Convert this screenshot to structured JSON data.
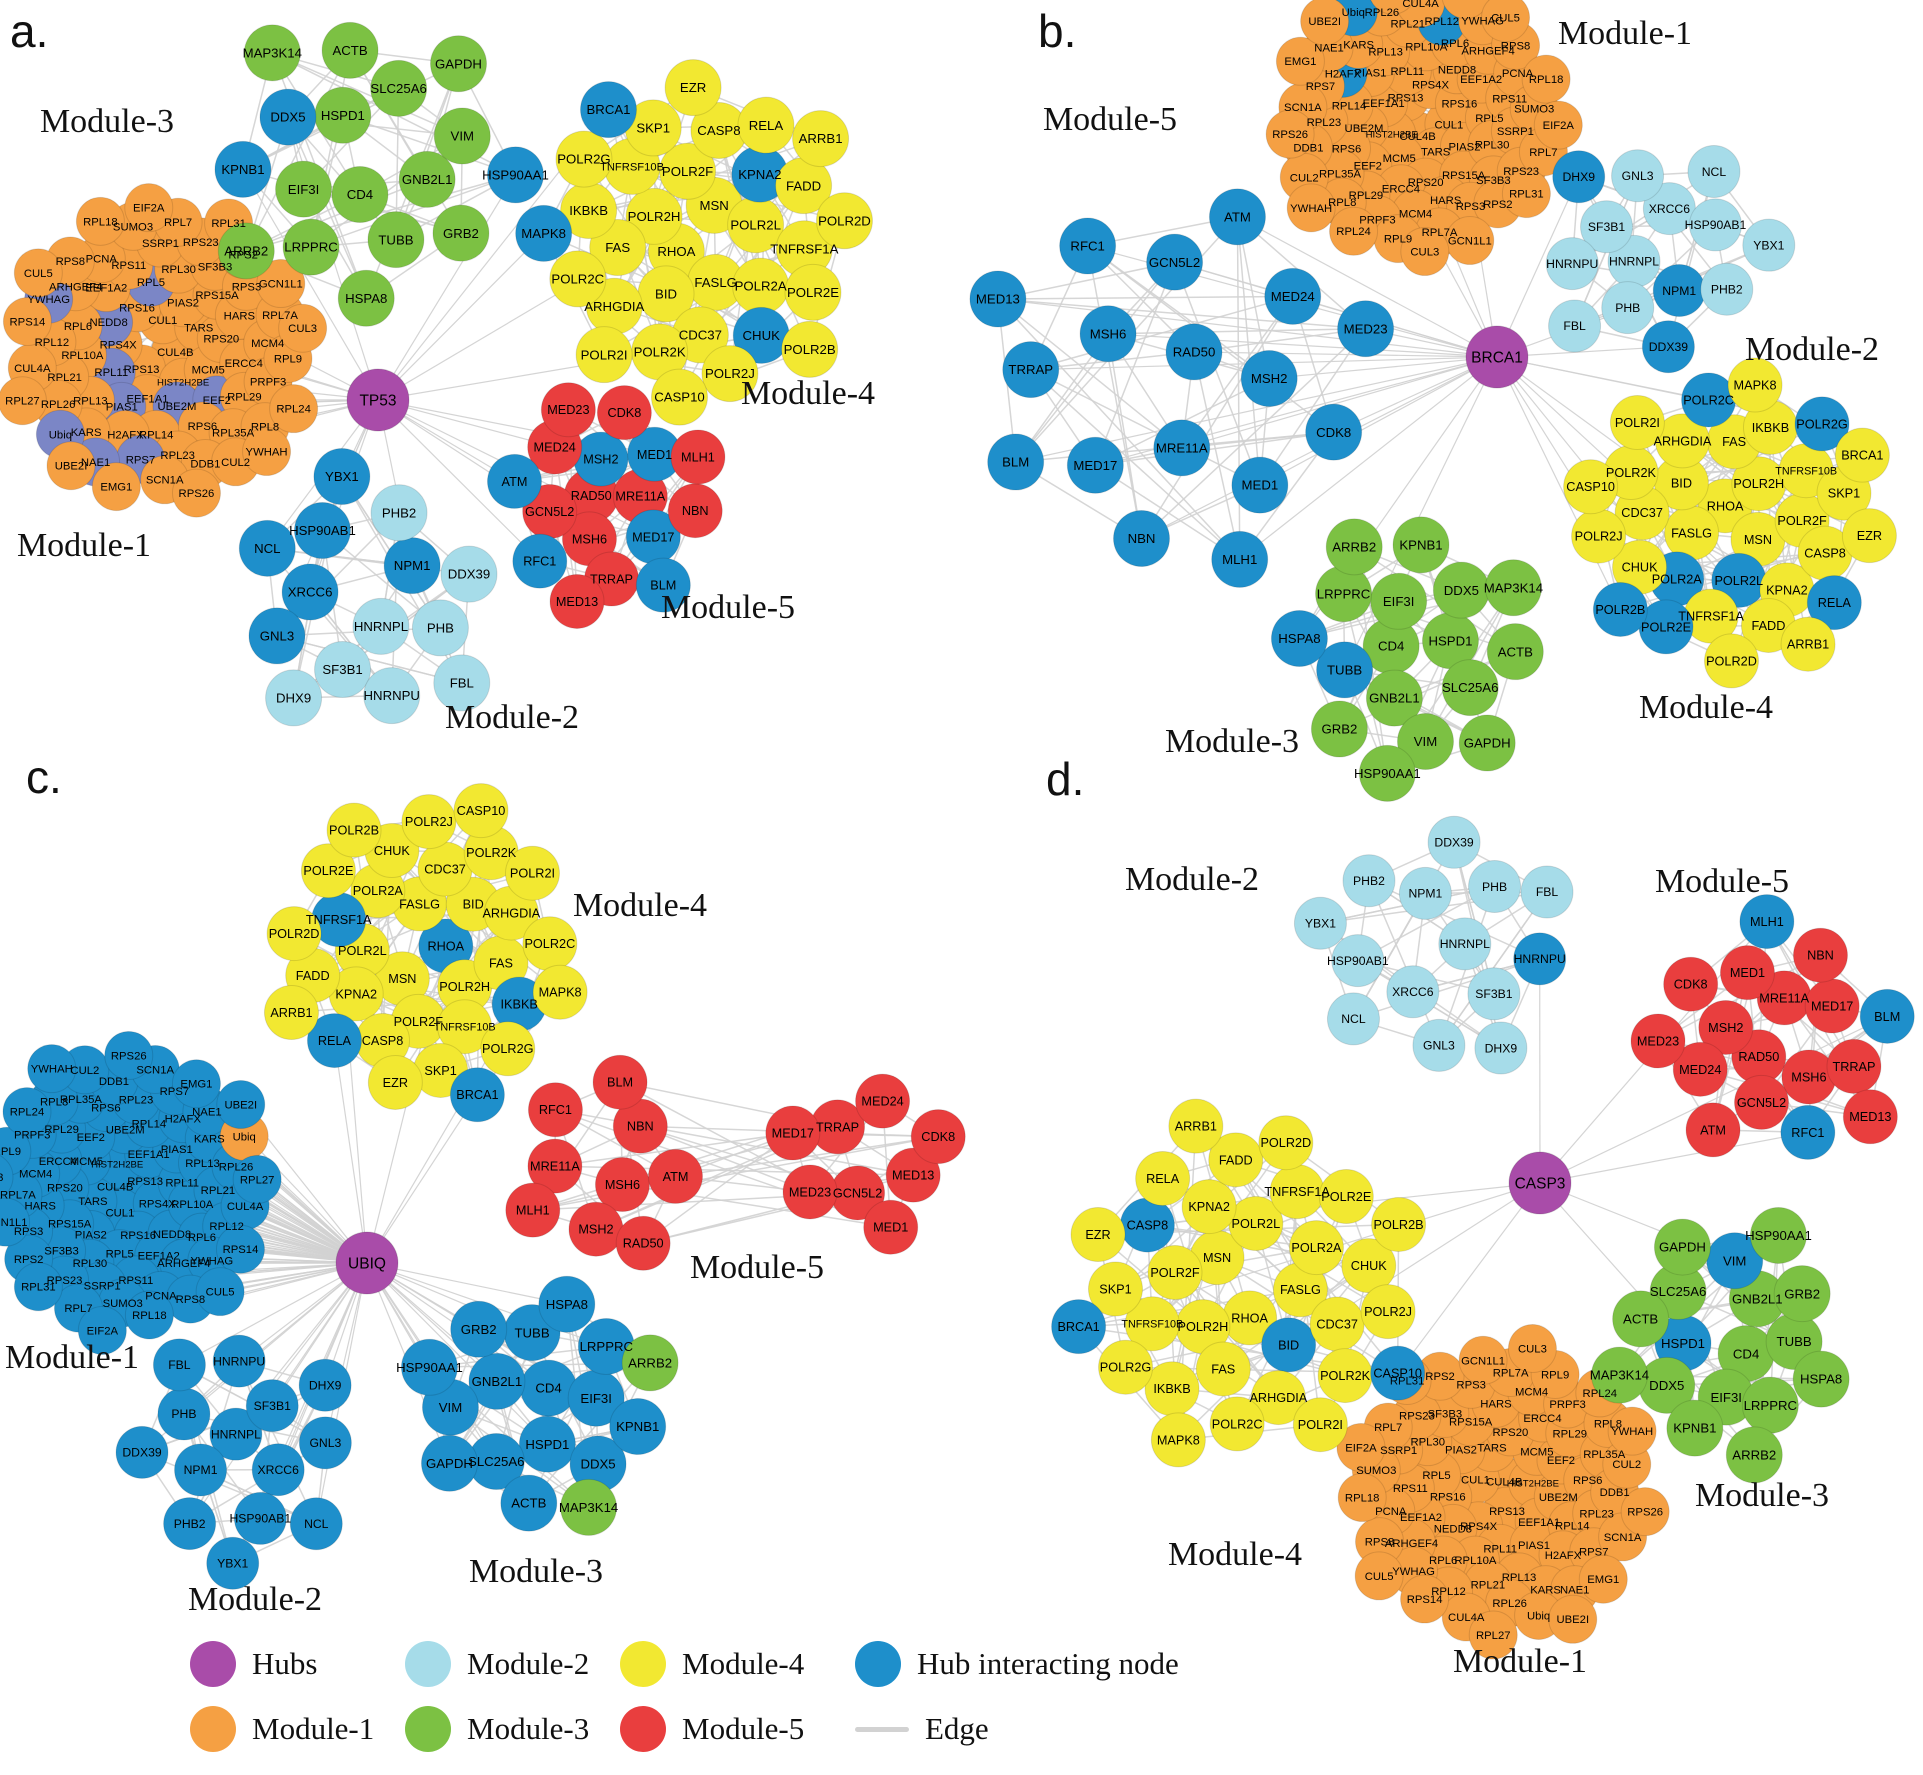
{
  "colors": {
    "hub": "#A94CA9",
    "module1": "#F5A043",
    "module2": "#A6DCE9",
    "module3": "#7CC143",
    "module4": "#F2E831",
    "module5": "#E93E3E",
    "hub_interacting": "#1E8FCB",
    "module1_highlight": "#7B86C6",
    "edge": "#D2D2D2",
    "label": "#000000"
  },
  "gene_sets": {
    "module1": [
      "CUL4B",
      "RPS13",
      "CUL1",
      "HIST2H2BE",
      "RPS4X",
      "TARS",
      "EEF1A1",
      "RPS16",
      "MCM5",
      "RPL11",
      "PIAS2",
      "UBE2M",
      "NEDD8",
      "RPS20",
      "PIAS1",
      "RPL5",
      "EEF2",
      "RPL10A",
      "RPS15A",
      "RPL14",
      "EEF1A2",
      "ERCC4",
      "RPL13",
      "RPL30",
      "RPS6",
      "RPL6",
      "HARS",
      "H2AFX",
      "RPS11",
      "RPL29",
      "RPL21",
      "SF3B3",
      "RPL23",
      "ARHGEF4",
      "MCM4",
      "KARS",
      "SSRP1",
      "RPL35A",
      "RPL12",
      "RPS3",
      "RPS7",
      "PCNA",
      "PRPF3",
      "RPL26",
      "RPS23",
      "DDB1",
      "YWHAG",
      "RPL7A",
      "NAE1",
      "SUMO3",
      "RPL8",
      "CUL4A",
      "RPS2",
      "SCN1A",
      "RPS8",
      "RPL9",
      "Ubiq",
      "RPL7",
      "CUL2",
      "RPS14",
      "GCN1L1",
      "EMG1",
      "RPL18",
      "RPL24",
      "RPL27",
      "RPL31",
      "RPS26",
      "CUL5",
      "CUL3",
      "UBE2I",
      "EIF2A",
      "YWHAH"
    ],
    "module2": [
      "HNRNPL",
      "XRCC6",
      "NPM1",
      "SF3B1",
      "HSP90AB1",
      "PHB",
      "GNL3",
      "PHB2",
      "HNRNPU",
      "NCL",
      "DDX39",
      "DHX9",
      "YBX1",
      "FBL"
    ],
    "module3": [
      "CD4",
      "HSPD1",
      "GNB2L1",
      "EIF3I",
      "SLC25A6",
      "TUBB",
      "DDX5",
      "VIM",
      "LRPPRC",
      "ACTB",
      "GRB2",
      "KPNB1",
      "GAPDH",
      "HSPA8",
      "MAP3K14",
      "HSP90AA1",
      "ARRB2"
    ],
    "module4": [
      "RHOA",
      "MSN",
      "FASLG",
      "POLR2H",
      "POLR2L",
      "BID",
      "POLR2F",
      "POLR2A",
      "FAS",
      "KPNA2",
      "CDC37",
      "TNFRSF10B",
      "TNFRSF1A",
      "ARHGDIA",
      "CASP8",
      "CHUK",
      "IKBKB",
      "FADD",
      "POLR2K",
      "SKP1",
      "POLR2E",
      "POLR2C",
      "RELA",
      "POLR2J",
      "POLR2G",
      "POLR2D",
      "POLR2I",
      "EZR",
      "POLR2B",
      "MAPK8",
      "ARRB1",
      "CASP10",
      "BRCA1"
    ],
    "module5": [
      "RAD50",
      "MRE11A",
      "MSH6",
      "MSH2",
      "MED17",
      "GCN5L2",
      "MED1",
      "TRRAP",
      "MED24",
      "NBN",
      "RFC1",
      "CDK8",
      "BLM",
      "ATM",
      "MLH1",
      "MED13",
      "MED23"
    ],
    "module5_c": [
      "MSH6",
      "MRE11A",
      "NBN",
      "MSH2",
      "RFC1",
      "ATM",
      "MLH1",
      "BLM",
      "RAD50",
      "GCN5L2",
      "TRRAP",
      "MED13",
      "MED23",
      "MED24",
      "MED1",
      "MED17",
      "CDK8"
    ]
  },
  "panels": [
    {
      "id": "a",
      "letter": "a.",
      "hub": "TP53",
      "modules": [
        {
          "key": "m1",
          "name": "Module-1",
          "color": "module1",
          "nodes_ref": "module1",
          "highlight_color": "module1_highlight",
          "highlighted": [
            "RPL11",
            "RPL5",
            "EEF2",
            "UBE2M",
            "NEDD8",
            "PIAS1",
            "RPS7",
            "NAE1",
            "Ubiq",
            "YWHAG"
          ]
        },
        {
          "key": "m2",
          "name": "Module-2",
          "color": "module2",
          "nodes_ref": "module2",
          "highlighted": [
            "XRCC6",
            "NPM1",
            "HSP90AB1",
            "GNL3",
            "NCL",
            "YBX1"
          ]
        },
        {
          "key": "m3",
          "name": "Module-3",
          "color": "module3",
          "nodes_ref": "module3",
          "highlighted": [
            "DDX5",
            "KPNB1",
            "HSP90AA1"
          ]
        },
        {
          "key": "m4",
          "name": "Module-4",
          "color": "module4",
          "nodes_ref": "module4",
          "highlighted": [
            "KPNA2",
            "CHUK",
            "MAPK8",
            "BRCA1"
          ]
        },
        {
          "key": "m5",
          "name": "Module-5",
          "color": "module5",
          "nodes_ref": "module5",
          "highlighted": [
            "MSH2",
            "MED17",
            "MED1",
            "RFC1",
            "BLM",
            "ATM"
          ]
        }
      ]
    },
    {
      "id": "b",
      "letter": "b.",
      "hub": "BRCA1",
      "modules": [
        {
          "key": "m1",
          "name": "Module-1",
          "color": "module1",
          "nodes_ref": "module1",
          "highlighted": [
            "H2AFX",
            "Ubiq",
            "RPL12"
          ]
        },
        {
          "key": "m2",
          "name": "Module-2",
          "color": "module2",
          "nodes_ref": "module2",
          "highlighted": [
            "NPM1",
            "DHX9",
            "DDX39"
          ]
        },
        {
          "key": "m3",
          "name": "Module-3",
          "color": "module3",
          "nodes_ref": "module3",
          "highlighted": [
            "TUBB",
            "HSPA8"
          ]
        },
        {
          "key": "m4",
          "name": "Module-4",
          "color": "module4",
          "nodes_ref": "module4",
          "highlighted": [
            "POLR2A",
            "POLR2B",
            "POLR2C",
            "POLR2E",
            "POLR2G",
            "POLR2L",
            "RELA"
          ]
        },
        {
          "key": "m5",
          "name": "Module-5",
          "color": "module5",
          "nodes_ref": "module5",
          "highlight_all": true
        }
      ]
    },
    {
      "id": "c",
      "letter": "c.",
      "hub": "UBIQ",
      "modules": [
        {
          "key": "m1",
          "name": "Module-1",
          "color": "module1",
          "nodes_ref": "module1",
          "highlight_all_except": [
            "Ubiq"
          ]
        },
        {
          "key": "m2",
          "name": "Module-2",
          "color": "module2",
          "nodes_ref": "module2",
          "highlight_all": true
        },
        {
          "key": "m3",
          "name": "Module-3",
          "color": "module3",
          "nodes_ref": "module3",
          "highlight_all_except": [
            "ARRB2",
            "MAP3K14"
          ]
        },
        {
          "key": "m4",
          "name": "Module-4",
          "color": "module4",
          "nodes_ref": "module4",
          "highlighted": [
            "BRCA1",
            "IKBKB",
            "TNFRSF1A",
            "RELA",
            "RHOA"
          ]
        },
        {
          "key": "m5",
          "name": "Module-5",
          "color": "module5",
          "nodes_ref": "module5_c",
          "highlighted": []
        }
      ]
    },
    {
      "id": "d",
      "letter": "d.",
      "hub": "CASP3",
      "modules": [
        {
          "key": "m1",
          "name": "Module-1",
          "color": "module1",
          "nodes_ref": "module1",
          "highlighted": []
        },
        {
          "key": "m2",
          "name": "Module-2",
          "color": "module2",
          "nodes_ref": "module2",
          "highlighted": [
            "HNRNPU"
          ]
        },
        {
          "key": "m3",
          "name": "Module-3",
          "color": "module3",
          "nodes_ref": "module3",
          "highlighted": [
            "VIM",
            "HSPD1"
          ]
        },
        {
          "key": "m4",
          "name": "Module-4",
          "color": "module4",
          "nodes_ref": "module4",
          "highlighted": [
            "BRCA1",
            "CASP10",
            "CASP8",
            "BID"
          ]
        },
        {
          "key": "m5",
          "name": "Module-5",
          "color": "module5",
          "nodes_ref": "module5",
          "highlighted": [
            "RFC1",
            "MLH1",
            "BLM"
          ]
        }
      ]
    }
  ],
  "legend": {
    "items": [
      {
        "swatch": "hub",
        "shape": "circle",
        "label": "Hubs"
      },
      {
        "swatch": "module2",
        "shape": "circle",
        "label": "Module-2"
      },
      {
        "swatch": "module4",
        "shape": "circle",
        "label": "Module-4"
      },
      {
        "swatch": "hub_interacting",
        "shape": "circle",
        "label": "Hub interacting node"
      },
      {
        "swatch": "module1",
        "shape": "circle",
        "label": "Module-1"
      },
      {
        "swatch": "module3",
        "shape": "circle",
        "label": "Module-3"
      },
      {
        "swatch": "module5",
        "shape": "circle",
        "label": "Module-5"
      },
      {
        "swatch": "edge",
        "shape": "line",
        "label": "Edge"
      }
    ]
  }
}
